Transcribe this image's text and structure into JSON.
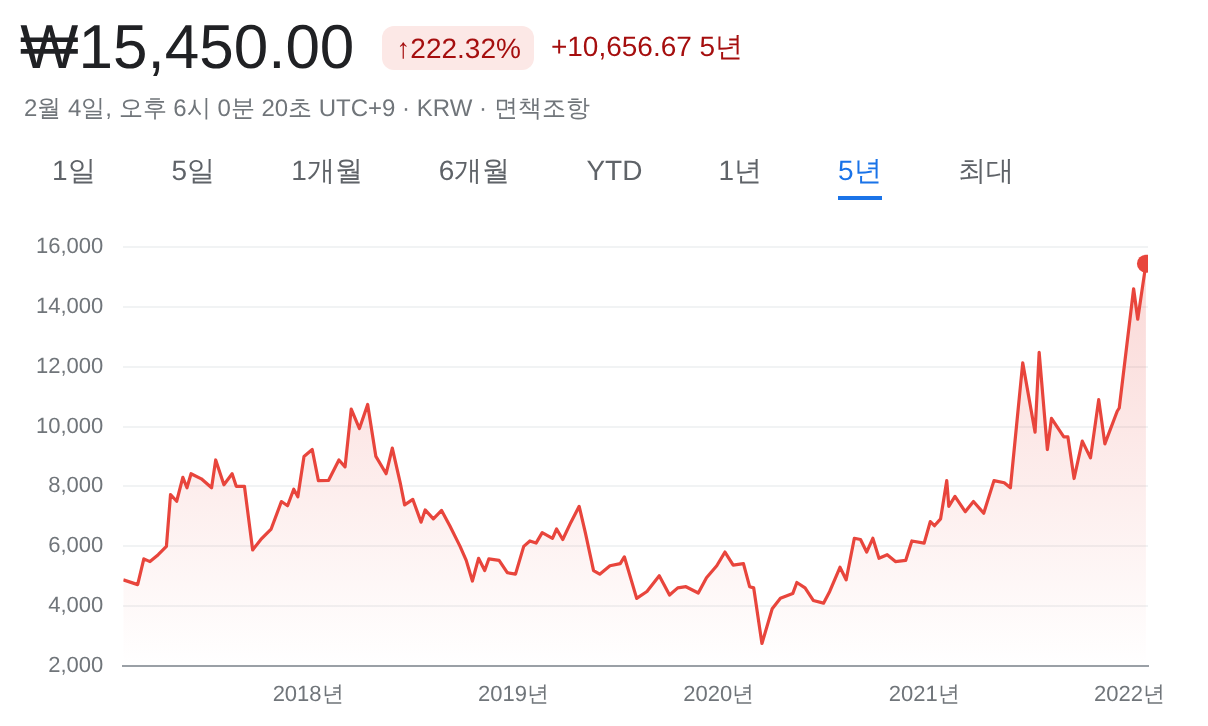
{
  "chart_data": {
    "type": "area",
    "title": "₩15,450.00",
    "subtitle": "2월 4일, 오후 6시 0분 20초 UTC+9 · KRW · 면책조항",
    "annotations": [
      "↑222.32%",
      "+10,656.67 5년",
      "1일",
      "5일",
      "1개월",
      "6개월",
      "YTD",
      "1년",
      "5년",
      "최대"
    ],
    "x": [
      2017.1,
      2017.17,
      2017.2,
      2017.23,
      2017.27,
      2017.31,
      2017.33,
      2017.36,
      2017.39,
      2017.41,
      2017.43,
      2017.48,
      2017.53,
      2017.55,
      2017.59,
      2017.63,
      2017.65,
      2017.69,
      2017.73,
      2017.77,
      2017.82,
      2017.87,
      2017.9,
      2017.93,
      2017.95,
      2017.98,
      2018.02,
      2018.05,
      2018.1,
      2018.15,
      2018.18,
      2018.21,
      2018.25,
      2018.29,
      2018.33,
      2018.38,
      2018.41,
      2018.45,
      2018.47,
      2018.51,
      2018.55,
      2018.57,
      2018.61,
      2018.65,
      2018.69,
      2018.74,
      2018.77,
      2018.8,
      2018.83,
      2018.86,
      2018.88,
      2018.93,
      2018.97,
      2019.01,
      2019.05,
      2019.08,
      2019.11,
      2019.14,
      2019.19,
      2019.21,
      2019.24,
      2019.28,
      2019.32,
      2019.35,
      2019.39,
      2019.42,
      2019.47,
      2019.52,
      2019.54,
      2019.6,
      2019.65,
      2019.71,
      2019.76,
      2019.8,
      2019.84,
      2019.9,
      2019.94,
      2019.99,
      2020.03,
      2020.07,
      2020.12,
      2020.15,
      2020.17,
      2020.21,
      2020.26,
      2020.3,
      2020.36,
      2020.38,
      2020.42,
      2020.46,
      2020.51,
      2020.54,
      2020.59,
      2020.62,
      2020.66,
      2020.69,
      2020.72,
      2020.75,
      2020.78,
      2020.82,
      2020.86,
      2020.91,
      2020.94,
      2021.0,
      2021.03,
      2021.05,
      2021.08,
      2021.11,
      2021.12,
      2021.15,
      2021.2,
      2021.24,
      2021.29,
      2021.34,
      2021.39,
      2021.42,
      2021.48,
      2021.54,
      2021.56,
      2021.6,
      2021.62,
      2021.68,
      2021.7,
      2021.73,
      2021.77,
      2021.81,
      2021.85,
      2021.88,
      2021.94,
      2021.95,
      2022.02,
      2022.04,
      2022.08
    ],
    "series": [
      {
        "color": "#e8453c",
        "values": [
          4870,
          4710,
          5570,
          5480,
          5710,
          5990,
          7725,
          7500,
          8300,
          7950,
          8420,
          8250,
          7950,
          8880,
          8050,
          8420,
          8000,
          8000,
          5870,
          6220,
          6570,
          7490,
          7350,
          7900,
          7650,
          9000,
          9230,
          8190,
          8200,
          8880,
          8650,
          10580,
          9930,
          10740,
          9000,
          8420,
          9280,
          8070,
          7380,
          7560,
          6800,
          7210,
          6910,
          7190,
          6680,
          5990,
          5520,
          4830,
          5590,
          5180,
          5570,
          5520,
          5110,
          5060,
          5990,
          6170,
          6100,
          6450,
          6260,
          6570,
          6220,
          6800,
          7330,
          6450,
          5180,
          5060,
          5340,
          5410,
          5640,
          4250,
          4480,
          5010,
          4360,
          4600,
          4640,
          4430,
          4940,
          5340,
          5800,
          5360,
          5410,
          4640,
          4600,
          2740,
          3900,
          4250,
          4410,
          4780,
          4600,
          4180,
          4090,
          4480,
          5290,
          4870,
          6260,
          6220,
          5800,
          6260,
          5590,
          5710,
          5480,
          5520,
          6170,
          6100,
          6820,
          6680,
          6910,
          8190,
          7330,
          7660,
          7150,
          7490,
          7100,
          8190,
          8120,
          7950,
          12130,
          9810,
          12480,
          9230,
          10270,
          9650,
          9650,
          8260,
          9510,
          8950,
          10900,
          9420,
          10510,
          10620,
          14610,
          13590,
          15450
        ]
      }
    ],
    "xlim": [
      2017.1,
      2022.09
    ],
    "xticks": [
      {
        "value": 2018,
        "label": "2018년"
      },
      {
        "value": 2019,
        "label": "2019년"
      },
      {
        "value": 2020,
        "label": "2020년"
      },
      {
        "value": 2021,
        "label": "2021년"
      },
      {
        "value": 2022,
        "label": "2022년"
      }
    ],
    "ylim": [
      2000,
      16000
    ],
    "yticks": [
      {
        "value": 2000,
        "label": "2,000"
      },
      {
        "value": 4000,
        "label": "4,000"
      },
      {
        "value": 6000,
        "label": "6,000"
      },
      {
        "value": 8000,
        "label": "8,000"
      },
      {
        "value": 10000,
        "label": "10,000"
      },
      {
        "value": 12000,
        "label": "12,000"
      },
      {
        "value": 14000,
        "label": "14,000"
      },
      {
        "value": 16000,
        "label": "16,000"
      }
    ],
    "grid": "y",
    "marker": "none",
    "line_style": "solid"
  }
}
